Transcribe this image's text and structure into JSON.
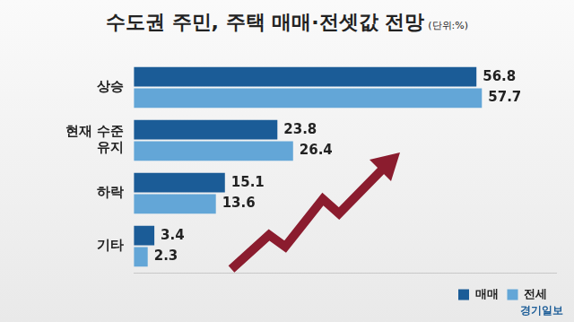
{
  "chart_data": {
    "type": "bar",
    "orientation": "horizontal",
    "title": "수도권 주민, 주택 매매·전셋값 전망",
    "subtitle": "(단위:%)",
    "source": "경기일보",
    "categories": [
      "상승",
      "현재 수준 유지",
      "하락",
      "기타"
    ],
    "series": [
      {
        "name": "매매",
        "color": "#1b5c97",
        "values": [
          56.8,
          23.8,
          15.1,
          3.4
        ]
      },
      {
        "name": "전세",
        "color": "#63a6d7",
        "values": [
          57.7,
          26.4,
          13.6,
          2.3
        ]
      }
    ],
    "xlim": [
      0,
      70
    ],
    "grid": false,
    "data_labels": true,
    "tick_labels": "y",
    "legend": "bottom-right"
  }
}
